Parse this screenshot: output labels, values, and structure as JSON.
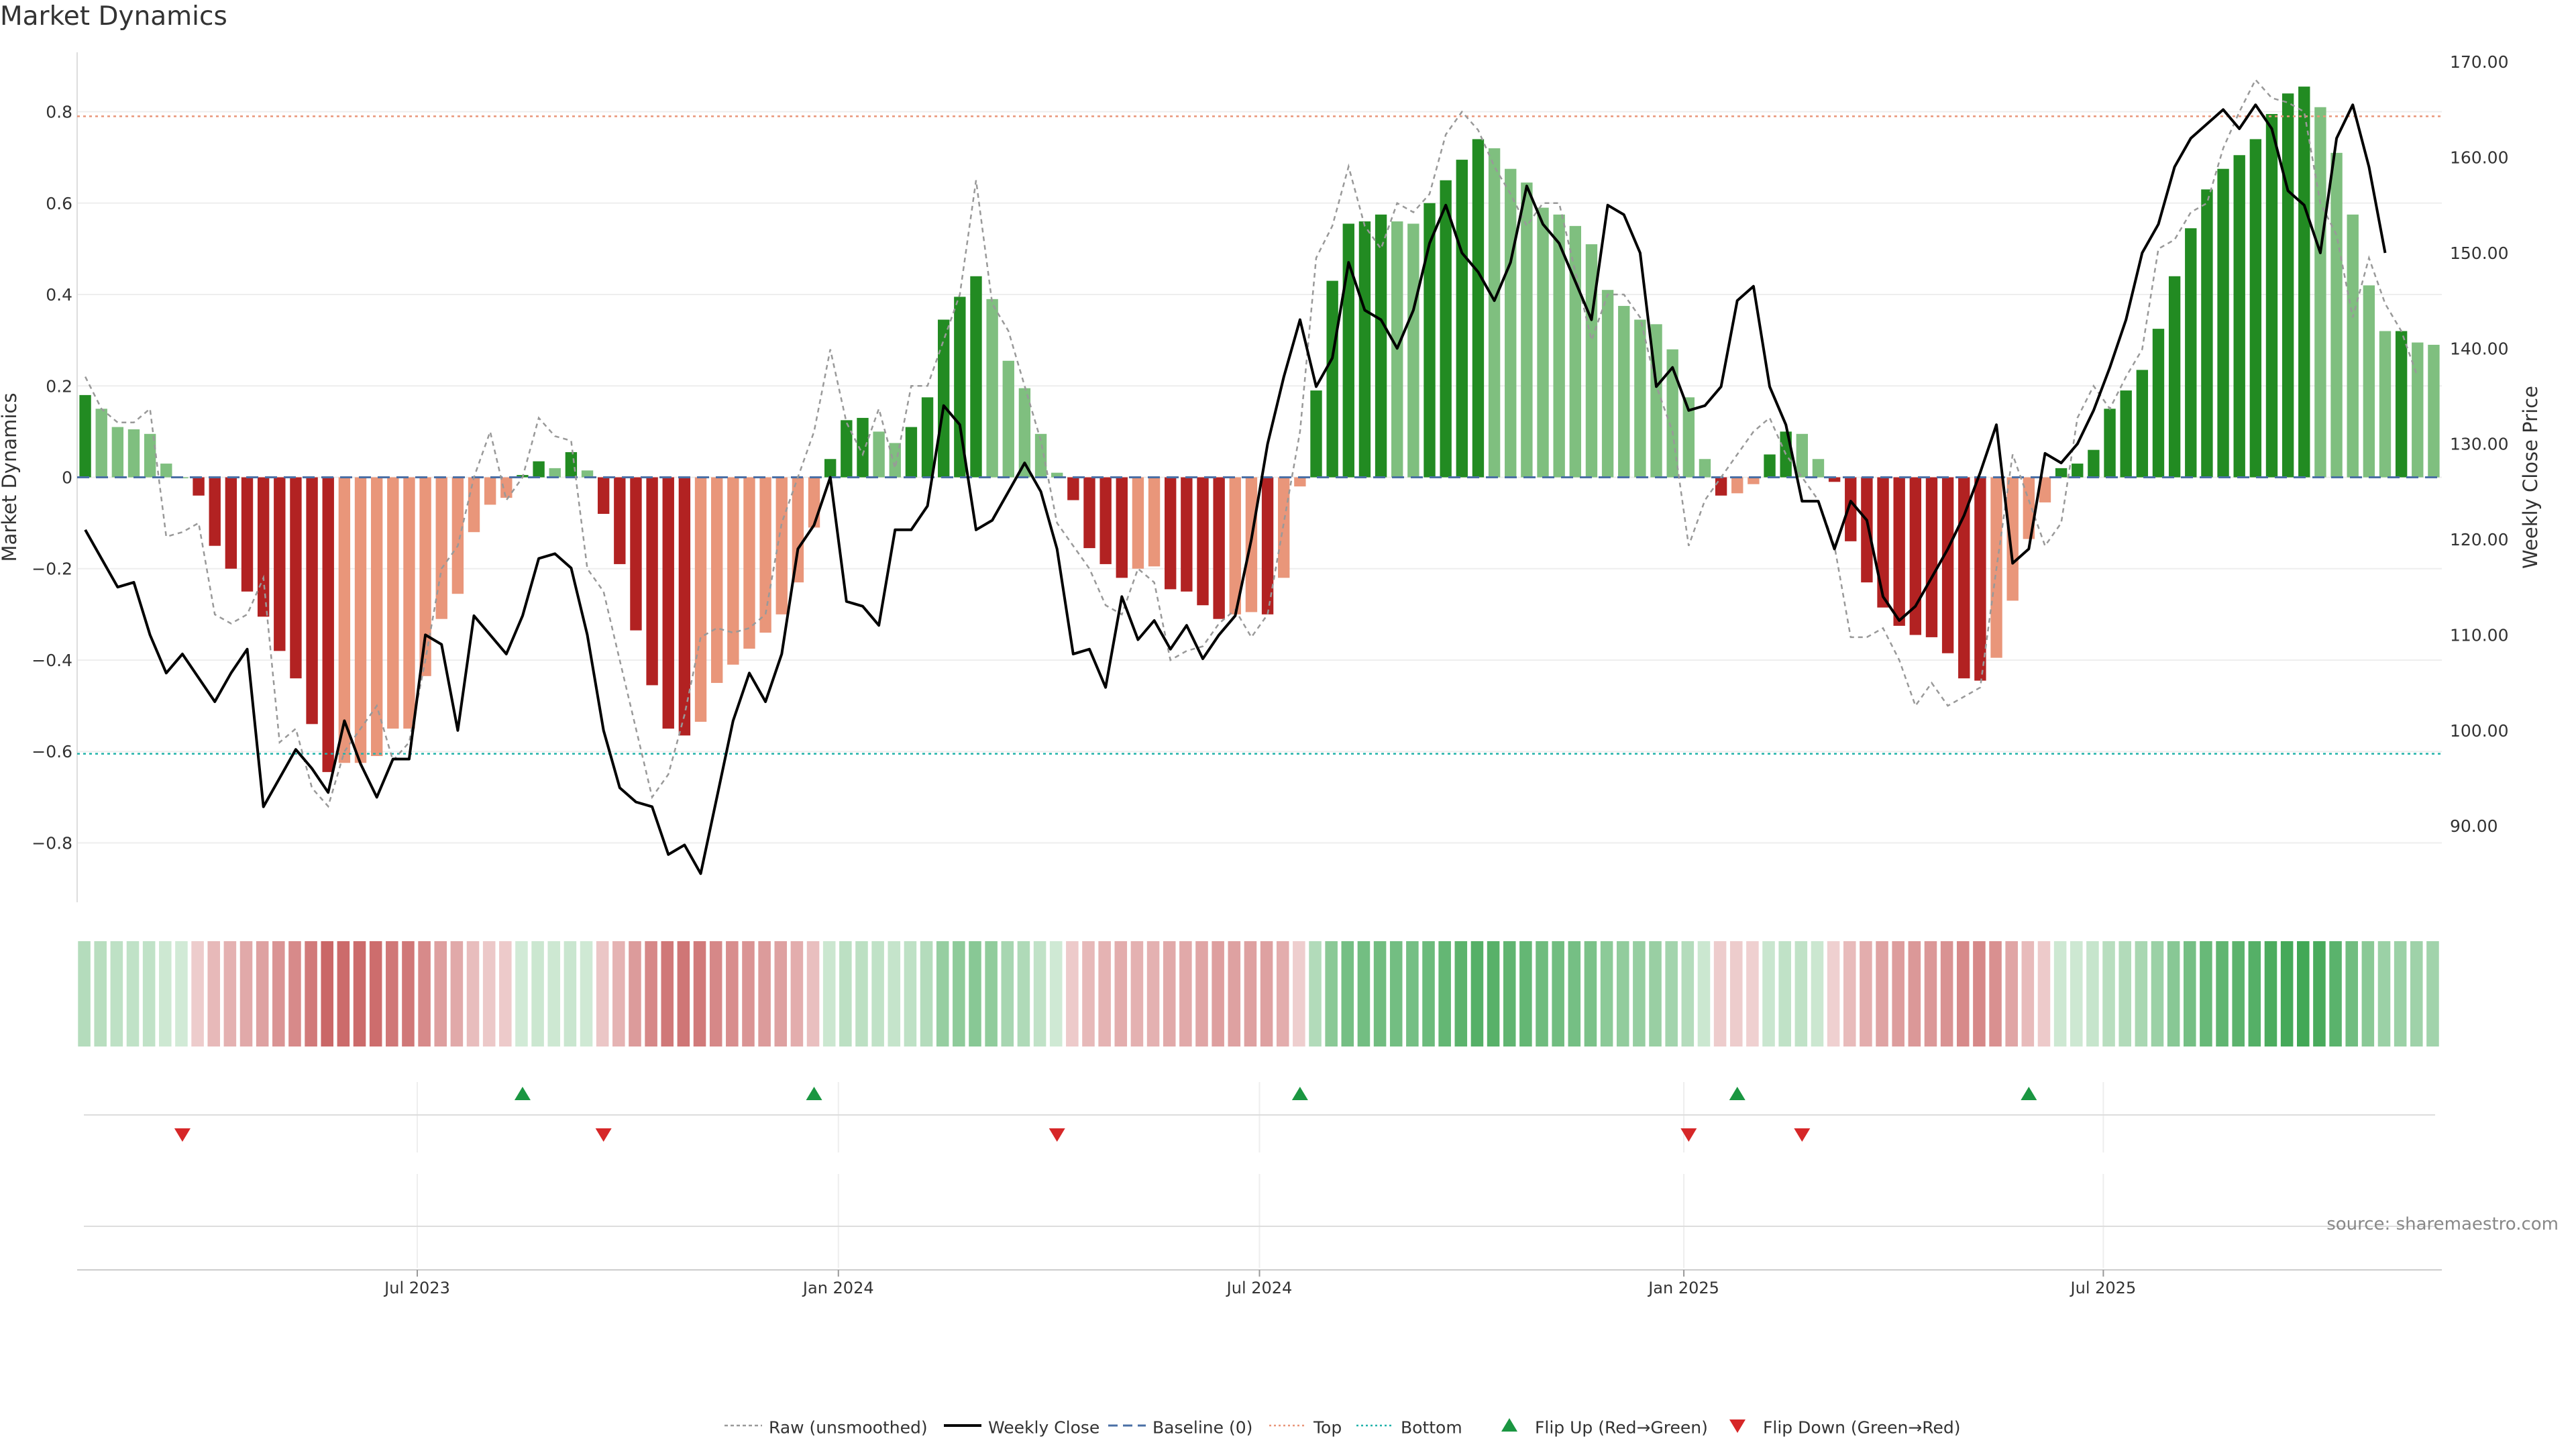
{
  "chart_data": {
    "type": "bar",
    "title": "Market Dynamics",
    "source": "source: sharemaestro.com",
    "ylabel": "Market Dynamics",
    "y2label": "Weekly Close Price",
    "ylim": [
      -0.93,
      0.93
    ],
    "y2lim": [
      82.0,
      171.0
    ],
    "yticks": [
      {
        "value": 0.8,
        "label": "0.8"
      },
      {
        "value": 0.6,
        "label": "0.6"
      },
      {
        "value": 0.4,
        "label": "0.4"
      },
      {
        "value": 0.2,
        "label": "0.2"
      },
      {
        "value": 0.0,
        "label": "0"
      },
      {
        "value": -0.2,
        "label": "−0.2"
      },
      {
        "value": -0.4,
        "label": "−0.4"
      },
      {
        "value": -0.6,
        "label": "−0.6"
      },
      {
        "value": -0.8,
        "label": "−0.8"
      }
    ],
    "y2ticks": [
      {
        "value": 170,
        "label": "170.00"
      },
      {
        "value": 160,
        "label": "160.00"
      },
      {
        "value": 150,
        "label": "150.00"
      },
      {
        "value": 140,
        "label": "140.00"
      },
      {
        "value": 130,
        "label": "130.00"
      },
      {
        "value": 120,
        "label": "120.00"
      },
      {
        "value": 110,
        "label": "110.00"
      },
      {
        "value": 100,
        "label": "100.00"
      },
      {
        "value": 90,
        "label": "90.00"
      }
    ],
    "xticks": [
      {
        "week": 20.5,
        "label": "Jul 2023"
      },
      {
        "week": 46.5,
        "label": "Jan 2024"
      },
      {
        "week": 72.5,
        "label": "Jul 2024"
      },
      {
        "week": 98.7,
        "label": "Jan 2025"
      },
      {
        "week": 124.6,
        "label": "Jul 2025"
      }
    ],
    "top_level": 0.79,
    "bottom_level": -0.605,
    "baseline": 0,
    "smoothed": [
      0.18,
      0.15,
      0.11,
      0.105,
      0.095,
      0.03,
      0.0,
      -0.04,
      -0.15,
      -0.2,
      -0.25,
      -0.305,
      -0.38,
      -0.44,
      -0.54,
      -0.645,
      -0.625,
      -0.625,
      -0.61,
      -0.55,
      -0.55,
      -0.435,
      -0.31,
      -0.255,
      -0.12,
      -0.06,
      -0.045,
      0.005,
      0.035,
      0.02,
      0.055,
      0.015,
      -0.08,
      -0.19,
      -0.335,
      -0.455,
      -0.55,
      -0.565,
      -0.535,
      -0.45,
      -0.41,
      -0.375,
      -0.34,
      -0.3,
      -0.23,
      -0.11,
      0.04,
      0.125,
      0.13,
      0.1,
      0.075,
      0.11,
      0.175,
      0.345,
      0.395,
      0.44,
      0.39,
      0.255,
      0.195,
      0.095,
      0.01,
      -0.05,
      -0.155,
      -0.19,
      -0.22,
      -0.2,
      -0.195,
      -0.245,
      -0.25,
      -0.28,
      -0.31,
      -0.3,
      -0.295,
      -0.3,
      -0.22,
      -0.02,
      0.19,
      0.43,
      0.555,
      0.56,
      0.575,
      0.56,
      0.555,
      0.6,
      0.65,
      0.695,
      0.74,
      0.72,
      0.675,
      0.645,
      0.59,
      0.575,
      0.55,
      0.51,
      0.41,
      0.375,
      0.345,
      0.335,
      0.28,
      0.175,
      0.04,
      -0.04,
      -0.035,
      -0.015,
      0.05,
      0.1,
      0.095,
      0.04,
      -0.01,
      -0.14,
      -0.23,
      -0.285,
      -0.325,
      -0.345,
      -0.35,
      -0.385,
      -0.44,
      -0.445,
      -0.395,
      -0.27,
      -0.135,
      -0.055,
      0.02,
      0.03,
      0.06,
      0.15,
      0.19,
      0.235,
      0.325,
      0.44,
      0.545,
      0.63,
      0.675,
      0.705,
      0.74,
      0.795,
      0.84,
      0.855,
      0.81,
      0.71,
      0.575,
      0.42,
      0.32,
      0.32,
      0.295,
      0.29
    ],
    "raw": [
      0.22,
      0.15,
      0.12,
      0.12,
      0.15,
      -0.13,
      -0.12,
      -0.1,
      -0.3,
      -0.32,
      -0.3,
      -0.22,
      -0.58,
      -0.55,
      -0.68,
      -0.72,
      -0.6,
      -0.55,
      -0.5,
      -0.62,
      -0.58,
      -0.4,
      -0.2,
      -0.15,
      0.0,
      0.1,
      -0.05,
      0.0,
      0.13,
      0.09,
      0.08,
      -0.2,
      -0.25,
      -0.4,
      -0.55,
      -0.7,
      -0.65,
      -0.52,
      -0.35,
      -0.33,
      -0.34,
      -0.33,
      -0.3,
      -0.1,
      0.0,
      0.1,
      0.28,
      0.12,
      0.05,
      0.15,
      0.02,
      0.2,
      0.2,
      0.3,
      0.4,
      0.65,
      0.38,
      0.32,
      0.2,
      0.08,
      -0.1,
      -0.15,
      -0.2,
      -0.28,
      -0.3,
      -0.2,
      -0.23,
      -0.4,
      -0.38,
      -0.37,
      -0.32,
      -0.29,
      -0.35,
      -0.3,
      -0.1,
      0.1,
      0.48,
      0.55,
      0.68,
      0.55,
      0.5,
      0.6,
      0.58,
      0.62,
      0.75,
      0.8,
      0.76,
      0.68,
      0.62,
      0.55,
      0.6,
      0.6,
      0.45,
      0.3,
      0.4,
      0.4,
      0.35,
      0.2,
      0.1,
      -0.15,
      -0.05,
      0.0,
      0.05,
      0.1,
      0.13,
      0.05,
      0.0,
      -0.05,
      -0.15,
      -0.35,
      -0.35,
      -0.33,
      -0.4,
      -0.5,
      -0.45,
      -0.5,
      -0.48,
      -0.46,
      -0.2,
      0.05,
      -0.05,
      -0.15,
      -0.1,
      0.13,
      0.2,
      0.15,
      0.22,
      0.28,
      0.5,
      0.52,
      0.58,
      0.6,
      0.72,
      0.8,
      0.87,
      0.83,
      0.82,
      0.8,
      0.6,
      0.53,
      0.35,
      0.48,
      0.38,
      0.32,
      0.22
    ],
    "weekly_close": [
      121.0,
      118.0,
      115.0,
      115.5,
      110.0,
      106.0,
      108.0,
      105.5,
      103.0,
      106.0,
      108.5,
      92.0,
      95.0,
      98.0,
      96.0,
      93.5,
      101.0,
      96.5,
      93.0,
      97.0,
      97.0,
      110.0,
      109.0,
      100.0,
      112.0,
      110.0,
      108.0,
      112.0,
      118.0,
      118.5,
      117.0,
      110.0,
      100.0,
      94.0,
      92.5,
      92.0,
      87.0,
      88.0,
      85.0,
      93.0,
      101.0,
      106.0,
      103.0,
      108.0,
      119.0,
      121.5,
      126.5,
      113.5,
      113.0,
      111.0,
      121.0,
      121.0,
      123.5,
      134.0,
      132.0,
      121.0,
      122.0,
      125.0,
      128.0,
      125.0,
      119.0,
      108.0,
      108.5,
      104.5,
      114.0,
      109.5,
      111.5,
      108.5,
      111.0,
      107.5,
      110.0,
      112.0,
      120.0,
      130.0,
      137.0,
      143.0,
      136.0,
      139.0,
      149.0,
      144.0,
      143.0,
      140.0,
      144.0,
      151.0,
      155.0,
      150.0,
      148.0,
      145.0,
      149.0,
      157.0,
      153.0,
      151.0,
      147.0,
      143.0,
      155.0,
      154.0,
      150.0,
      136.0,
      138.0,
      133.5,
      134.0,
      136.0,
      145.0,
      146.5,
      136.0,
      132.0,
      124.0,
      124.0,
      119.0,
      124.0,
      122.0,
      114.0,
      111.5,
      113.0,
      116.0,
      119.0,
      122.5,
      127.0,
      132.0,
      117.5,
      119.0,
      129.0,
      128.0,
      130.0,
      133.5,
      138.0,
      143.0,
      150.0,
      153.0,
      159.0,
      162.0,
      163.5,
      165.0,
      163.0,
      165.5,
      163.0,
      156.5,
      155.0,
      150.0,
      162.0,
      165.5,
      159.0,
      150.0
    ],
    "flip_up_weeks": [
      27,
      45,
      75,
      102,
      120
    ],
    "flip_down_weeks": [
      6,
      32,
      60,
      99,
      106
    ],
    "legend": [
      {
        "label": "Raw (unsmoothed)"
      },
      {
        "label": "Weekly Close"
      },
      {
        "label": "Baseline (0)"
      },
      {
        "label": "Top"
      },
      {
        "label": "Bottom"
      },
      {
        "label": "Flip Up (Red→Green)"
      },
      {
        "label": "Flip Down (Green→Red)"
      }
    ]
  },
  "colors": {
    "bar_green_dark": "#228b22",
    "bar_green_light": "#7fbf7f",
    "bar_red_dark": "#b22222",
    "bar_red_light": "#e9967a",
    "raw_line": "#999999",
    "close_line": "#000000",
    "baseline": "#4a6fa5",
    "top_line": "#e9967a",
    "bottom_line": "#20b2aa",
    "flip_up": "#1a9641",
    "flip_down": "#d62728"
  }
}
